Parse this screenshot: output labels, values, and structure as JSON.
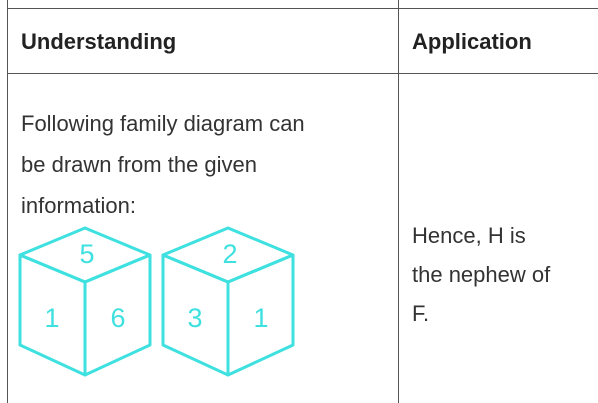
{
  "table": {
    "headers": [
      "Understanding",
      "Application"
    ],
    "rows": [
      {
        "understanding": [
          "Following family diagram can",
          "be drawn from the given",
          "information:"
        ],
        "dice": [
          [
            "5",
            "1",
            "6"
          ],
          [
            "2",
            "3",
            "1"
          ]
        ],
        "application": [
          "Hence, H is",
          "the nephew of",
          "F."
        ]
      }
    ]
  }
}
